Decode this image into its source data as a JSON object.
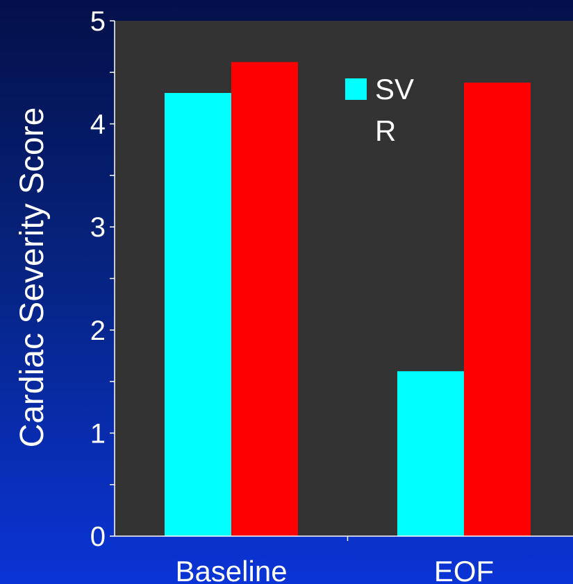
{
  "chart_data": {
    "type": "bar",
    "categories": [
      "Baseline",
      "EOF"
    ],
    "series": [
      {
        "name": "SV",
        "values": [
          4.3,
          1.6
        ],
        "color": "#00ffff"
      },
      {
        "name": "R",
        "values": [
          4.6,
          4.4
        ],
        "color": "#ff0000"
      }
    ],
    "ylabel": "Cardiac Severity Score",
    "xlabel": "",
    "ylim": [
      0,
      5
    ],
    "yticks": [
      "0",
      "1",
      "2",
      "3",
      "4",
      "5"
    ],
    "legend": {
      "position": "top-center",
      "line1": "SV",
      "line2": "R"
    },
    "plot_background": "#333333",
    "grid": false
  }
}
